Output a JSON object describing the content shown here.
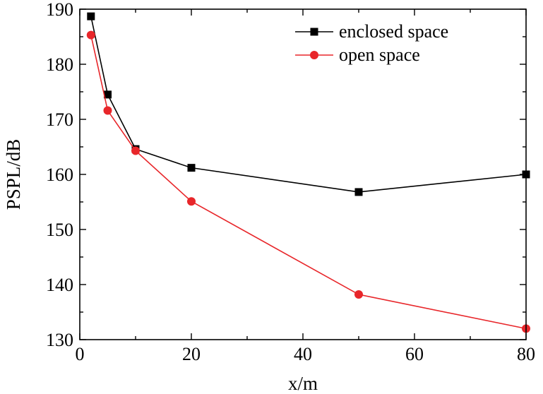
{
  "chart_data": {
    "type": "line",
    "title": "",
    "xlabel": "x/m",
    "ylabel": "PSPL/dB",
    "xlim": [
      0,
      80
    ],
    "ylim": [
      130,
      190
    ],
    "xticks": [
      0,
      20,
      40,
      60,
      80
    ],
    "yticks": [
      130,
      140,
      150,
      160,
      170,
      180,
      190
    ],
    "grid": false,
    "legend_position": "top-right",
    "series": [
      {
        "name": "enclosed space",
        "color": "#000000",
        "marker": "square",
        "x": [
          2,
          5,
          10,
          20,
          50,
          80
        ],
        "y": [
          188.7,
          174.5,
          164.6,
          161.2,
          156.8,
          160.0
        ]
      },
      {
        "name": "open space",
        "color": "#e8262a",
        "marker": "circle",
        "x": [
          2,
          5,
          10,
          20,
          50,
          80
        ],
        "y": [
          185.3,
          171.6,
          164.3,
          155.1,
          138.2,
          132.0
        ]
      }
    ]
  }
}
